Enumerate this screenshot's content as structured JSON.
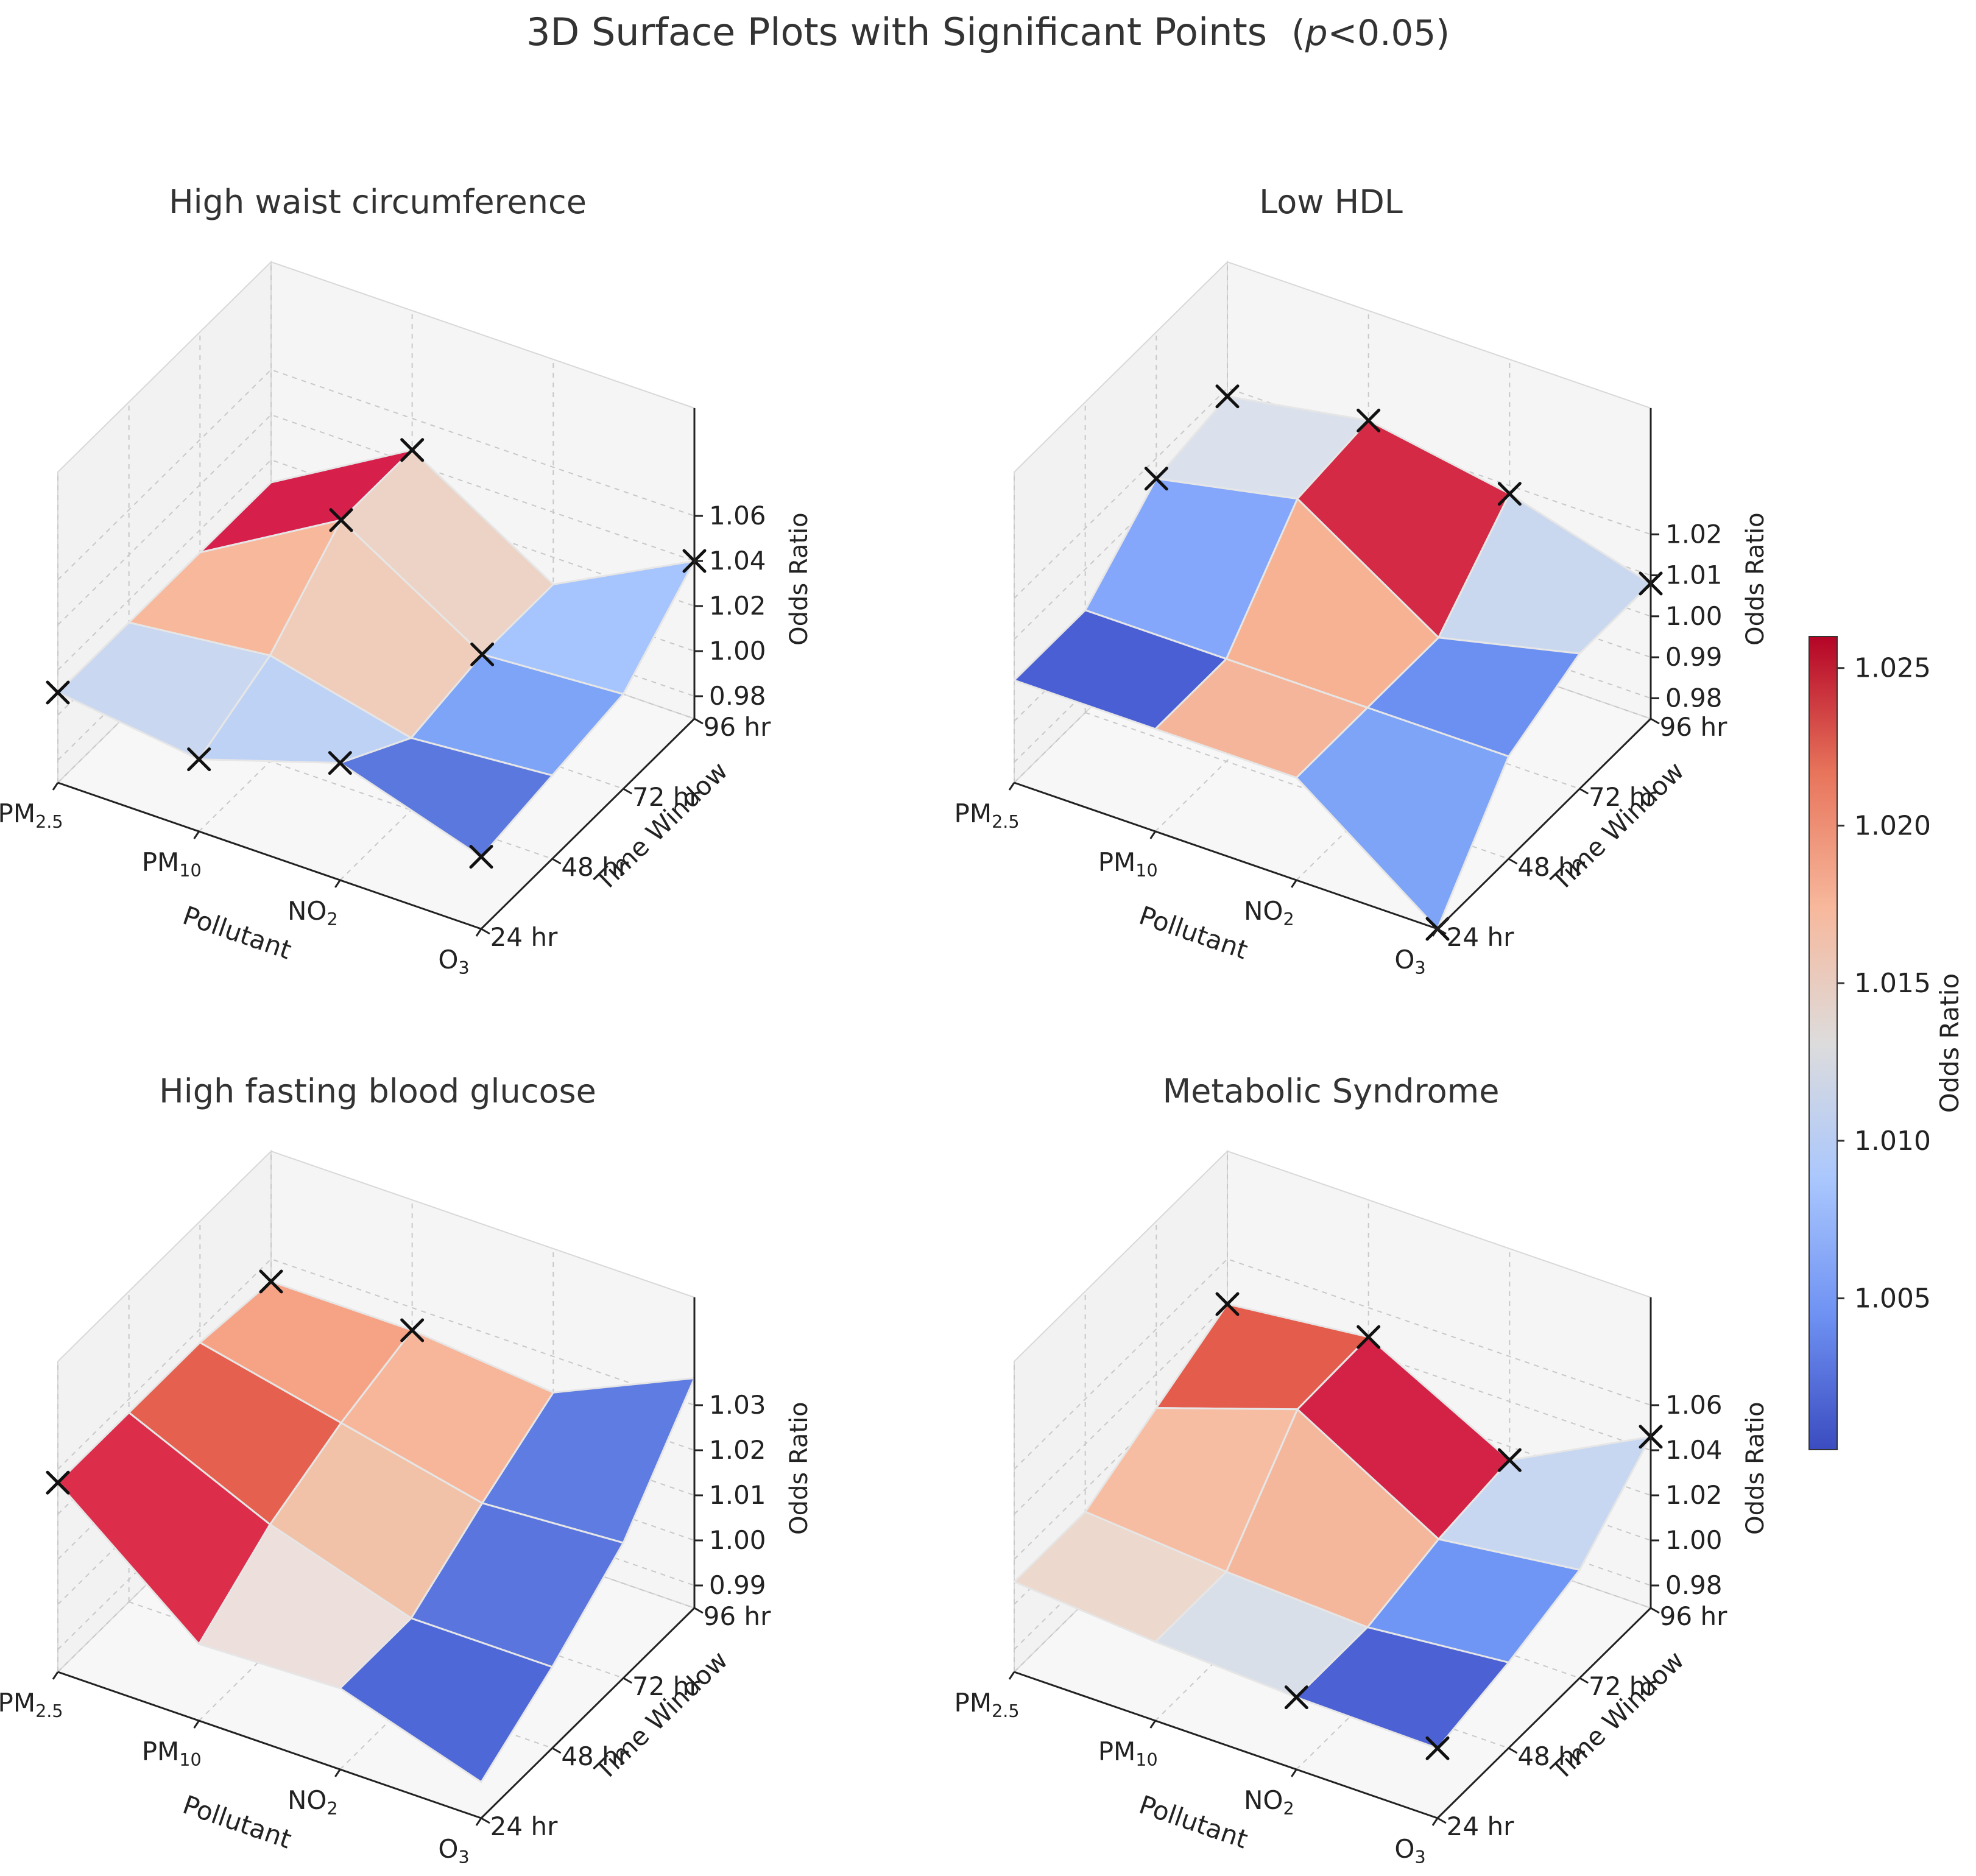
{
  "figure": {
    "title": "3D Surface Plots with Significant Points",
    "p_note_italic": "p",
    "p_note_rest": "<0.05)",
    "p_note_open": "("
  },
  "colorbar": {
    "label": "Odds Ratio",
    "range": [
      1.0002,
      1.026
    ],
    "ticks": [
      "1.005",
      "1.010",
      "1.015",
      "1.020",
      "1.025"
    ],
    "tick_values": [
      1.005,
      1.01,
      1.015,
      1.02,
      1.025
    ],
    "colors": [
      "#3b4cc0",
      "#6f92f3",
      "#aac7fd",
      "#dddcdc",
      "#f7b89c",
      "#e7745b",
      "#b40426"
    ]
  },
  "chart_data": [
    {
      "type": "surface3d",
      "title": "High waist circumference",
      "xlabel": "Pollutant",
      "ylabel": "Time Window",
      "zlabel": "Odds Ratio",
      "x_categories": [
        "PM2.5",
        "PM10",
        "NO2",
        "O3"
      ],
      "x_tick_parts": [
        [
          "PM",
          "2.5"
        ],
        [
          "PM",
          "10"
        ],
        [
          "NO",
          "2"
        ],
        [
          "O",
          "3"
        ]
      ],
      "y_categories": [
        "24 hr",
        "48 hr",
        "72 hr",
        "96 hr"
      ],
      "z_ticks": [
        "0.98",
        "1.00",
        "1.02",
        "1.04",
        "1.06"
      ],
      "z_tick_values": [
        0.98,
        1.0,
        1.02,
        1.04,
        1.06
      ],
      "zlim": [
        0.97,
        1.07
      ],
      "values_by_pollutant": [
        [
          1.01,
          1.01,
          1.01,
          1.01
        ],
        [
          1.002,
          1.017,
          1.046,
          1.046
        ],
        [
          1.022,
          1.002,
          1.008,
          1.008
        ],
        [
          1.002,
          1.007,
          1.012,
          1.04
        ]
      ],
      "face_colors": [
        [
          "#c9d7f0",
          "#f7b89c",
          "#d6204b"
        ],
        [
          "#bed2f6",
          "#f0cdbb",
          "#ecd3c5"
        ],
        [
          "#5b78de",
          "#7ea4f7",
          "#a6c4fd"
        ]
      ],
      "significant": [
        [
          0,
          0
        ],
        [
          1,
          0
        ],
        [
          2,
          0
        ],
        [
          3,
          0
        ],
        [
          1,
          2
        ],
        [
          1,
          3
        ],
        [
          3,
          3
        ],
        [
          2,
          2
        ]
      ]
    },
    {
      "type": "surface3d",
      "title": "Low HDL",
      "xlabel": "Pollutant",
      "ylabel": "Time Window",
      "zlabel": "Odds Ratio",
      "x_categories": [
        "PM2.5",
        "PM10",
        "NO2",
        "O3"
      ],
      "x_tick_parts": [
        [
          "PM",
          "2.5"
        ],
        [
          "PM",
          "10"
        ],
        [
          "NO",
          "2"
        ],
        [
          "O",
          "3"
        ]
      ],
      "y_categories": [
        "24 hr",
        "48 hr",
        "72 hr",
        "96 hr"
      ],
      "z_ticks": [
        "0.98",
        "0.99",
        "1.00",
        "1.01",
        "1.02"
      ],
      "z_tick_values": [
        0.98,
        0.99,
        1.0,
        1.01,
        1.02
      ],
      "zlim": [
        0.975,
        1.03
      ],
      "values_by_pollutant": [
        [
          1.0,
          1.0,
          1.015,
          1.018
        ],
        [
          1.0,
          1.0,
          1.022,
          1.024
        ],
        [
          1.0,
          1.0,
          1.0,
          1.018
        ],
        [
          0.975,
          1.0,
          1.008,
          1.008
        ]
      ],
      "face_colors": [
        [
          "#4a5fd3",
          "#84a7fb",
          "#dbe1ec"
        ],
        [
          "#f4b59b",
          "#f6b293",
          "#d42a45"
        ],
        [
          "#7ea4f7",
          "#6c90f2",
          "#cad8ef"
        ]
      ],
      "significant": [
        [
          0,
          3
        ],
        [
          1,
          3
        ],
        [
          2,
          3
        ],
        [
          3,
          3
        ],
        [
          0,
          2
        ],
        [
          3,
          0
        ]
      ]
    },
    {
      "type": "surface3d",
      "title": "High fasting blood glucose",
      "xlabel": "Pollutant",
      "ylabel": "Time Window",
      "zlabel": "Odds Ratio",
      "x_categories": [
        "PM2.5",
        "PM10",
        "NO2",
        "O3"
      ],
      "x_tick_parts": [
        [
          "PM",
          "2.5"
        ],
        [
          "PM",
          "10"
        ],
        [
          "NO",
          "2"
        ],
        [
          "O",
          "3"
        ]
      ],
      "y_categories": [
        "24 hr",
        "48 hr",
        "72 hr",
        "96 hr"
      ],
      "z_ticks": [
        "0.99",
        "1.00",
        "1.01",
        "1.02",
        "1.03"
      ],
      "z_tick_values": [
        0.99,
        1.0,
        1.01,
        1.02,
        1.03
      ],
      "zlim": [
        0.985,
        1.035
      ],
      "values_by_pollutant": [
        [
          1.027,
          1.027,
          1.027,
          1.025
        ],
        [
          1.002,
          1.013,
          1.02,
          1.025
        ],
        [
          1.003,
          1.003,
          1.013,
          1.022
        ],
        [
          0.993,
          1.003,
          1.015,
          1.036
        ]
      ],
      "face_colors": [
        [
          "#dc2d4b",
          "#e5604e",
          "#f6a385"
        ],
        [
          "#ecdfdc",
          "#f2c2a8",
          "#f7b69a"
        ],
        [
          "#4f68d8",
          "#5a76de",
          "#5f7ce2"
        ]
      ],
      "significant": [
        [
          0,
          0
        ],
        [
          0,
          3
        ],
        [
          1,
          3
        ]
      ]
    },
    {
      "type": "surface3d",
      "title": "Metabolic Syndrome",
      "xlabel": "Pollutant",
      "ylabel": "Time Window",
      "zlabel": "Odds Ratio",
      "x_categories": [
        "PM2.5",
        "PM10",
        "NO2",
        "O3"
      ],
      "x_tick_parts": [
        [
          "PM",
          "2.5"
        ],
        [
          "PM",
          "10"
        ],
        [
          "NO",
          "2"
        ],
        [
          "O",
          "3"
        ]
      ],
      "y_categories": [
        "24 hr",
        "48 hr",
        "72 hr",
        "96 hr"
      ],
      "z_ticks": [
        "0.98",
        "1.00",
        "1.02",
        "1.04",
        "1.06"
      ],
      "z_tick_values": [
        0.98,
        1.0,
        1.02,
        1.04,
        1.06
      ],
      "zlim": [
        0.97,
        1.07
      ],
      "values_by_pollutant": [
        [
          1.01,
          1.01,
          1.025,
          1.04
        ],
        [
          1.005,
          1.005,
          1.046,
          1.047
        ],
        [
          1.002,
          1.002,
          1.01,
          1.014
        ],
        [
          1.001,
          1.008,
          1.018,
          1.046
        ]
      ],
      "face_colors": [
        [
          "#ecd8cc",
          "#f7bda3",
          "#e45c4c"
        ],
        [
          "#d9dfe9",
          "#f5b79c",
          "#d42247"
        ],
        [
          "#4b61d4",
          "#7096f5",
          "#c7d7f1"
        ]
      ],
      "significant": [
        [
          0,
          3
        ],
        [
          1,
          3
        ],
        [
          2,
          3
        ],
        [
          3,
          3
        ],
        [
          2,
          0
        ],
        [
          3,
          0
        ]
      ]
    }
  ]
}
